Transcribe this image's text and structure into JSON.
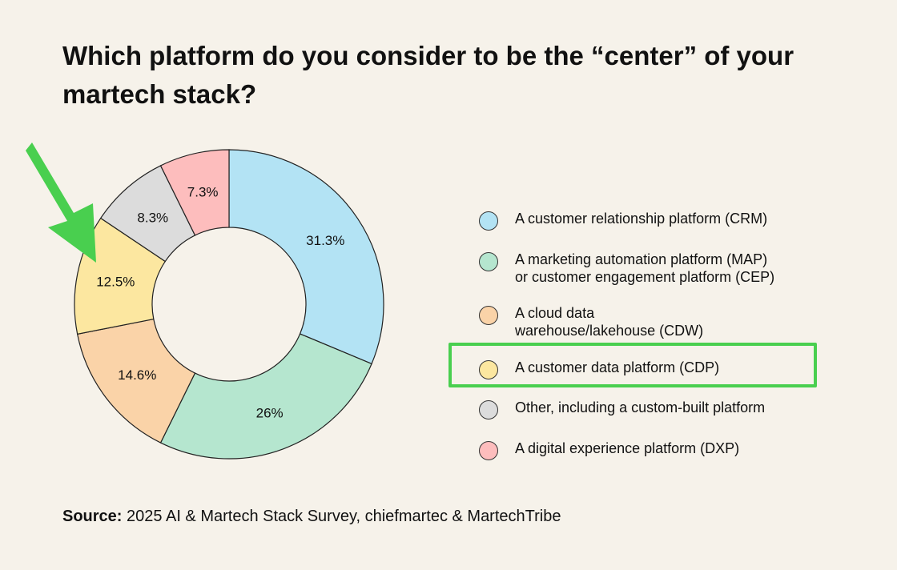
{
  "title": "Which platform do you consider to be the “center” of your martech stack?",
  "chart_data": {
    "type": "pie",
    "donut": true,
    "legend_position": "right",
    "slices": [
      {
        "label": "A customer relationship platform (CRM)",
        "value": 31.3,
        "display": "31.3%",
        "color": "#b3e3f4"
      },
      {
        "label": "A marketing automation platform (MAP) or customer engagement platform (CEP)",
        "value": 26,
        "display": "26%",
        "color": "#b5e6cf"
      },
      {
        "label": "A cloud data warehouse/lakehouse (CDW)",
        "value": 14.6,
        "display": "14.6%",
        "color": "#fad3a8"
      },
      {
        "label": "A customer data platform (CDP)",
        "value": 12.5,
        "display": "12.5%",
        "color": "#fce7a0"
      },
      {
        "label": "Other, including a custom-built platform",
        "value": 8.3,
        "display": "8.3%",
        "color": "#dcdcdc"
      },
      {
        "label": "A digital experience platform (DXP)",
        "value": 7.3,
        "display": "7.3%",
        "color": "#fdbdbd"
      }
    ]
  },
  "legend": {
    "items": [
      {
        "lines": [
          "A customer relationship platform (CRM)"
        ]
      },
      {
        "lines": [
          "A marketing automation platform (MAP)",
          "or customer engagement platform (CEP)"
        ]
      },
      {
        "lines": [
          "A cloud data",
          "warehouse/lakehouse (CDW)"
        ]
      },
      {
        "lines": [
          "A customer data platform (CDP)"
        ]
      },
      {
        "lines": [
          "Other, including a custom-built platform"
        ]
      },
      {
        "lines": [
          "A digital experience platform (DXP)"
        ]
      }
    ]
  },
  "highlight": {
    "item": "A customer data platform (CDP)",
    "color": "#49cf4f"
  },
  "arrow": {
    "color": "#49cf4f",
    "points_to": "A customer data platform (CDP)"
  },
  "source": {
    "label": "Source:",
    "text": "2025 AI & Martech Stack Survey, chiefmartec & MartechTribe"
  }
}
